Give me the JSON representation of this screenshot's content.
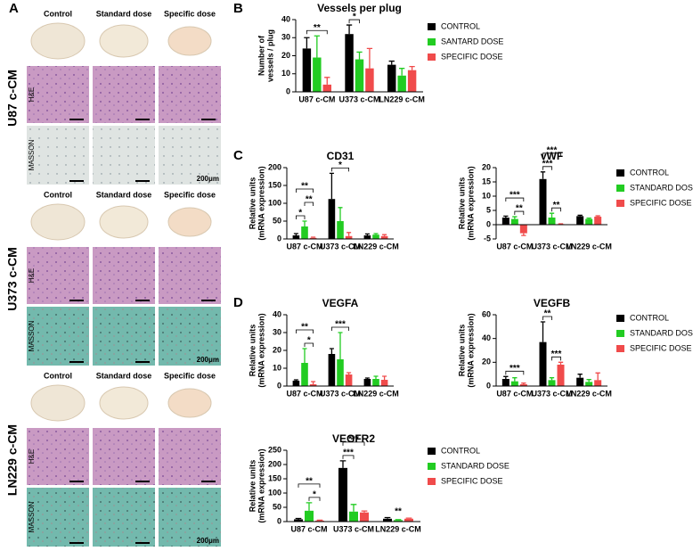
{
  "panel_a": {
    "label": "A",
    "blocks": [
      {
        "label": "U87 c-CM",
        "columns": [
          "Control",
          "Standard dose",
          "Specific dose"
        ],
        "rows": [
          "H&E",
          "MASSON"
        ],
        "scale": "200μm"
      },
      {
        "label": "U373 c-CM",
        "columns": [
          "Control",
          "Standard dose",
          "Specific dose"
        ],
        "rows": [
          "H&E",
          "MASSON"
        ],
        "scale": "200μm"
      },
      {
        "label": "LN229 c-CM",
        "columns": [
          "Control",
          "Standard dose",
          "Specific dose"
        ],
        "rows": [
          "H&E",
          "MASSON"
        ],
        "scale": "200μm"
      }
    ]
  },
  "chart_data": [
    {
      "type": "bar",
      "panel": "B",
      "title": "Vessels per plug",
      "ylabel": [
        "Number of",
        "vessels / plug"
      ],
      "categories": [
        "U87 c-CM",
        "U373 c-CM",
        "LN229 c-CM"
      ],
      "ylim": [
        0,
        40
      ],
      "yticks": [
        0,
        10,
        20,
        30,
        40
      ],
      "legend": true,
      "series": [
        {
          "name": "CONTROL",
          "color": "#000000",
          "values": [
            24,
            32,
            15
          ],
          "errors": [
            6,
            5,
            2
          ]
        },
        {
          "name": "SANTARD DOSE",
          "color": "#22cc22",
          "values": [
            19,
            18,
            9
          ],
          "errors": [
            12,
            4,
            4
          ]
        },
        {
          "name": "SPECIFIC DOSE",
          "color": "#f04b4b",
          "values": [
            4,
            13,
            12
          ],
          "errors": [
            4,
            11,
            2
          ]
        }
      ],
      "brackets": [
        {
          "text": "**",
          "category": 0,
          "series": [
            0,
            2
          ]
        },
        {
          "text": "*",
          "category": 1,
          "series": [
            0,
            1
          ]
        }
      ]
    },
    {
      "type": "bar",
      "panel": "C",
      "title": "CD31",
      "ylabel": [
        "Relative units",
        "(mRNA expression)"
      ],
      "categories": [
        "U87 c-CM",
        "U373 c-CM",
        "LN229 c-CM"
      ],
      "ylim": [
        0,
        200
      ],
      "yticks": [
        0,
        50,
        100,
        150,
        200
      ],
      "legend": false,
      "series": [
        {
          "color": "#000000",
          "values": [
            10,
            112,
            10
          ],
          "errors": [
            5,
            72,
            4
          ]
        },
        {
          "color": "#22cc22",
          "values": [
            35,
            50,
            12
          ],
          "errors": [
            15,
            38,
            3
          ]
        },
        {
          "color": "#f04b4b",
          "values": [
            3,
            8,
            8
          ],
          "errors": [
            2,
            10,
            4
          ]
        }
      ],
      "brackets": [
        {
          "text": "*",
          "category": 0,
          "series": [
            0,
            1
          ]
        },
        {
          "text": "**",
          "category": 0,
          "series": [
            1,
            2
          ]
        },
        {
          "text": "**",
          "category": 0,
          "series": [
            0,
            2
          ]
        },
        {
          "text": "*",
          "category": 1,
          "series": [
            0,
            2
          ]
        }
      ]
    },
    {
      "type": "bar",
      "title": "vWF",
      "ylabel": [
        "Relative units",
        "(mRNA expression)"
      ],
      "categories": [
        "U87 c-CM",
        "U373 c-CM",
        "LN229 c-CM"
      ],
      "ylim": [
        -5,
        20
      ],
      "yticks": [
        -5,
        0,
        5,
        10,
        15,
        20
      ],
      "legend": true,
      "series": [
        {
          "name": "CONTROL",
          "color": "#000000",
          "values": [
            2.5,
            16,
            3
          ],
          "errors": [
            0.5,
            2.5,
            0.3
          ]
        },
        {
          "name": "STANDARD DOSE",
          "color": "#22cc22",
          "values": [
            2,
            2.5,
            2
          ],
          "errors": [
            0.8,
            1.5,
            0.3
          ]
        },
        {
          "name": "SPECIFIC DOSE",
          "color": "#f04b4b",
          "values": [
            -3,
            0.2,
            2.8
          ],
          "errors": [
            0.8,
            0.1,
            0.3
          ]
        }
      ],
      "brackets": [
        {
          "text": "**",
          "category": 0,
          "series": [
            1,
            2
          ]
        },
        {
          "text": "***",
          "category": 0,
          "series": [
            0,
            2
          ]
        },
        {
          "text": "**",
          "category": 1,
          "series": [
            1,
            2
          ]
        },
        {
          "text": "***",
          "category": 1,
          "series": [
            0,
            1
          ]
        },
        {
          "text": "***",
          "category": 1,
          "series": [
            0,
            2
          ]
        }
      ]
    },
    {
      "type": "bar",
      "panel": "D",
      "title": "VEGFA",
      "ylabel": [
        "Relative units",
        "(mRNA expression)"
      ],
      "categories": [
        "U87 c-CM",
        "U373 c-CM",
        "LN229 c-CM"
      ],
      "ylim": [
        0,
        40
      ],
      "yticks": [
        0,
        10,
        20,
        30,
        40
      ],
      "legend": false,
      "series": [
        {
          "color": "#000000",
          "values": [
            3,
            18,
            4
          ],
          "errors": [
            0.5,
            3,
            0.5
          ]
        },
        {
          "color": "#22cc22",
          "values": [
            13,
            15,
            4
          ],
          "errors": [
            8,
            15,
            1.5
          ]
        },
        {
          "color": "#f04b4b",
          "values": [
            1,
            6.5,
            3.5
          ],
          "errors": [
            1.5,
            1,
            2
          ]
        }
      ],
      "brackets": [
        {
          "text": "*",
          "category": 0,
          "series": [
            1,
            2
          ]
        },
        {
          "text": "**",
          "category": 0,
          "series": [
            0,
            2
          ]
        },
        {
          "text": "***",
          "category": 1,
          "series": [
            0,
            2
          ]
        }
      ]
    },
    {
      "type": "bar",
      "title": "VEGFB",
      "ylabel": [
        "Relative units",
        "(mRNA expression)"
      ],
      "categories": [
        "U87 c-CM",
        "U373 c-CM",
        "LN229 c-CM"
      ],
      "ylim": [
        0,
        60
      ],
      "yticks": [
        0,
        20,
        40,
        60
      ],
      "legend": true,
      "series": [
        {
          "name": "CONTROL",
          "color": "#000000",
          "values": [
            6,
            37,
            7
          ],
          "errors": [
            2,
            17,
            3
          ]
        },
        {
          "name": "STANDARD DOSE",
          "color": "#22cc22",
          "values": [
            4,
            5,
            3.5
          ],
          "errors": [
            3,
            2,
            2
          ]
        },
        {
          "name": "SPECIFIC DOSE",
          "color": "#f04b4b",
          "values": [
            1.5,
            18,
            5
          ],
          "errors": [
            1,
            2,
            6
          ]
        }
      ],
      "brackets": [
        {
          "text": "***",
          "category": 0,
          "series": [
            0,
            2
          ]
        },
        {
          "text": "***",
          "category": 1,
          "series": [
            1,
            2
          ]
        },
        {
          "text": "**",
          "category": 1,
          "series": [
            0,
            1
          ]
        }
      ]
    },
    {
      "type": "bar",
      "title": "VEGFR2",
      "ylabel": [
        "Relative units",
        "(mRNA expression)"
      ],
      "categories": [
        "U87 c-CM",
        "U373 c-CM",
        "LN229 c-CM"
      ],
      "ylim": [
        0,
        250
      ],
      "yticks": [
        0,
        50,
        100,
        150,
        200,
        250
      ],
      "legend": true,
      "series": [
        {
          "name": "CONTROL",
          "color": "#000000",
          "values": [
            8,
            188,
            10
          ],
          "errors": [
            3,
            25,
            4
          ]
        },
        {
          "name": "STANDARD DOSE",
          "color": "#22cc22",
          "values": [
            38,
            35,
            5
          ],
          "errors": [
            28,
            25,
            2
          ]
        },
        {
          "name": "SPECIFIC DOSE",
          "color": "#f04b4b",
          "values": [
            3,
            32,
            10
          ],
          "errors": [
            2,
            5,
            2
          ]
        }
      ],
      "brackets": [
        {
          "text": "*",
          "category": 0,
          "series": [
            1,
            2
          ]
        },
        {
          "text": "**",
          "category": 0,
          "series": [
            0,
            2
          ]
        },
        {
          "text": "***",
          "category": 1,
          "series": [
            0,
            1
          ]
        },
        {
          "text": "***",
          "category": 1,
          "series": [
            0,
            2
          ]
        },
        {
          "text": "**",
          "category": 2,
          "series": [
            1,
            1
          ]
        }
      ]
    }
  ]
}
